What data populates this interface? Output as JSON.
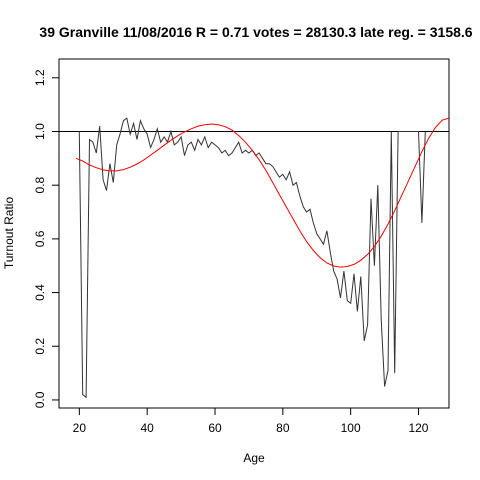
{
  "chart_data": {
    "type": "line",
    "title": "39 Granville 11/08/2016 R = 0.71 votes = 28130.3 late reg. = 3158.6",
    "xlabel": "Age",
    "ylabel": "Turnout Ratio",
    "xlim": [
      14,
      129
    ],
    "ylim": [
      -0.03,
      1.27
    ],
    "x_ticks": [
      20,
      40,
      60,
      80,
      100,
      120
    ],
    "y_ticks": [
      0.0,
      0.2,
      0.4,
      0.6,
      0.8,
      1.0,
      1.2
    ],
    "reference_line": {
      "y": 1.0,
      "color": "#000000"
    },
    "series": [
      {
        "color": "#333333",
        "x": [
          20,
          21,
          22,
          23,
          24,
          25,
          26,
          27,
          28,
          29,
          30,
          31,
          32,
          33,
          34,
          35,
          36,
          37,
          38,
          39,
          40,
          41,
          42,
          43,
          44,
          45,
          46,
          47,
          48,
          49,
          50,
          51,
          52,
          53,
          54,
          55,
          56,
          57,
          58,
          59,
          60,
          61,
          62,
          63,
          64,
          65,
          66,
          67,
          68,
          69,
          70,
          71,
          72,
          73,
          74,
          75,
          76,
          77,
          78,
          79,
          80,
          81,
          82,
          83,
          84,
          85,
          86,
          87,
          88,
          89,
          90,
          91,
          92,
          93,
          94,
          95,
          96,
          97,
          98,
          99,
          100,
          101,
          102,
          103,
          104,
          105,
          106,
          107,
          108,
          109,
          110,
          111,
          112,
          113,
          114,
          115,
          116,
          117,
          118,
          119,
          120,
          121,
          122
        ],
        "y": [
          1.0,
          0.02,
          0.01,
          0.97,
          0.96,
          0.92,
          1.02,
          0.82,
          0.78,
          0.88,
          0.81,
          0.95,
          0.99,
          1.04,
          1.05,
          0.99,
          1.03,
          0.97,
          1.04,
          1.01,
          0.99,
          0.94,
          0.97,
          1.01,
          0.96,
          0.98,
          0.96,
          1.0,
          0.95,
          0.96,
          0.98,
          0.91,
          0.95,
          0.96,
          0.93,
          0.97,
          0.95,
          0.98,
          0.94,
          0.96,
          0.95,
          0.94,
          0.92,
          0.93,
          0.91,
          0.92,
          0.94,
          0.96,
          0.92,
          0.93,
          0.92,
          0.93,
          0.91,
          0.92,
          0.9,
          0.88,
          0.88,
          0.87,
          0.85,
          0.83,
          0.84,
          0.82,
          0.85,
          0.8,
          0.81,
          0.76,
          0.72,
          0.7,
          0.71,
          0.66,
          0.62,
          0.6,
          0.58,
          0.63,
          0.55,
          0.48,
          0.45,
          0.38,
          0.48,
          0.37,
          0.36,
          0.47,
          0.33,
          0.46,
          0.22,
          0.28,
          0.75,
          0.5,
          0.8,
          0.3,
          0.05,
          0.11,
          1.0,
          0.1,
          1.0,
          1.0,
          1.0,
          1.0,
          1.0,
          1.0,
          1.0,
          0.66,
          1.0
        ]
      },
      {
        "color": "#ff0000",
        "x": [
          19,
          21,
          23,
          25,
          27,
          29,
          31,
          33,
          35,
          37,
          39,
          41,
          43,
          45,
          47,
          49,
          51,
          53,
          55,
          57,
          59,
          61,
          63,
          65,
          67,
          69,
          71,
          73,
          75,
          77,
          79,
          81,
          83,
          85,
          87,
          89,
          91,
          93,
          95,
          97,
          99,
          101,
          103,
          105,
          107,
          109,
          111,
          113,
          115,
          117,
          119,
          121,
          123,
          125,
          127,
          129
        ],
        "y": [
          0.9,
          0.89,
          0.875,
          0.865,
          0.857,
          0.853,
          0.853,
          0.858,
          0.867,
          0.879,
          0.894,
          0.912,
          0.93,
          0.949,
          0.967,
          0.984,
          0.998,
          1.01,
          1.02,
          1.025,
          1.028,
          1.025,
          1.018,
          1.005,
          0.985,
          0.96,
          0.93,
          0.895,
          0.855,
          0.81,
          0.765,
          0.72,
          0.675,
          0.63,
          0.59,
          0.557,
          0.53,
          0.51,
          0.499,
          0.495,
          0.497,
          0.505,
          0.52,
          0.542,
          0.572,
          0.61,
          0.655,
          0.705,
          0.76,
          0.815,
          0.87,
          0.925,
          0.975,
          1.015,
          1.042,
          1.05
        ]
      }
    ]
  }
}
